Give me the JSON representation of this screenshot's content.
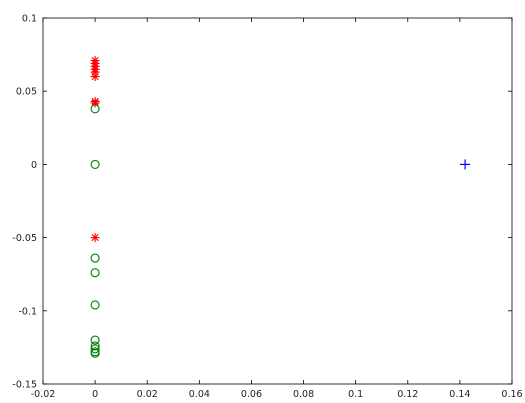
{
  "chart_data": {
    "type": "scatter",
    "xlim": [
      -0.02,
      0.16
    ],
    "ylim": [
      -0.15,
      0.1
    ],
    "grid": false,
    "x_ticks": [
      "-0.02",
      "0",
      "0.02",
      "0.04",
      "0.06",
      "0.08",
      "0.1",
      "0.12",
      "0.14",
      "0.16"
    ],
    "y_ticks": [
      "0.1",
      "0.05",
      "0",
      "-0.05",
      "-0.1",
      "-0.15"
    ],
    "series": [
      {
        "marker": "star",
        "color": "#ff0000",
        "points": [
          [
            0,
            0.071
          ],
          [
            0,
            0.069
          ],
          [
            0,
            0.067
          ],
          [
            0,
            0.065
          ],
          [
            0,
            0.063
          ],
          [
            0,
            0.06
          ],
          [
            0,
            0.043
          ],
          [
            0,
            0.042
          ],
          [
            0,
            -0.05
          ]
        ]
      },
      {
        "marker": "circle",
        "color": "#008000",
        "points": [
          [
            0,
            0.038
          ],
          [
            0,
            0.0
          ],
          [
            0,
            -0.064
          ],
          [
            0,
            -0.074
          ],
          [
            0,
            -0.096
          ],
          [
            0,
            -0.12
          ],
          [
            0,
            -0.124
          ],
          [
            0,
            -0.126
          ],
          [
            0,
            -0.128
          ],
          [
            0,
            -0.129
          ]
        ]
      },
      {
        "marker": "plus",
        "color": "#0000ff",
        "points": [
          [
            0.142,
            0.0
          ]
        ]
      }
    ]
  }
}
